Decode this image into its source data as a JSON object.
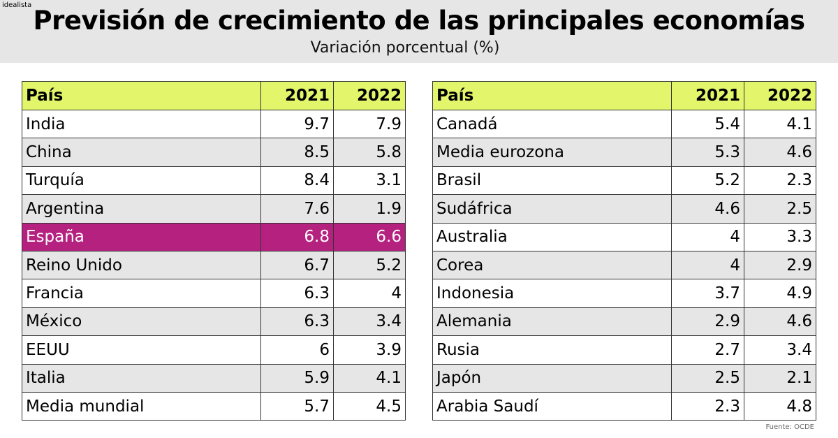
{
  "brand": "idealista",
  "title": "Previsión de crecimiento de las principales economías",
  "subtitle": "Variación porcentual (%)",
  "source": "Fuente: OCDE",
  "colors": {
    "header_row": "#e3f56b",
    "highlight": "#b5217f",
    "alt_row": "#e6e6e6"
  },
  "chart_data": {
    "type": "table",
    "columns": [
      "País",
      "2021",
      "2022"
    ],
    "highlight_row": "España",
    "tables": [
      {
        "rows": [
          [
            "India",
            "9.7",
            "7.9"
          ],
          [
            "China",
            "8.5",
            "5.8"
          ],
          [
            "Turquía",
            "8.4",
            "3.1"
          ],
          [
            "Argentina",
            "7.6",
            "1.9"
          ],
          [
            "España",
            "6.8",
            "6.6"
          ],
          [
            "Reino Unido",
            "6.7",
            "5.2"
          ],
          [
            "Francia",
            "6.3",
            "4"
          ],
          [
            "México",
            "6.3",
            "3.4"
          ],
          [
            "EEUU",
            "6",
            "3.9"
          ],
          [
            "Italia",
            "5.9",
            "4.1"
          ],
          [
            "Media mundial",
            "5.7",
            "4.5"
          ]
        ]
      },
      {
        "rows": [
          [
            "Canadá",
            "5.4",
            "4.1"
          ],
          [
            "Media eurozona",
            "5.3",
            "4.6"
          ],
          [
            "Brasil",
            "5.2",
            "2.3"
          ],
          [
            "Sudáfrica",
            "4.6",
            "2.5"
          ],
          [
            "Australia",
            "4",
            "3.3"
          ],
          [
            "Corea",
            "4",
            "2.9"
          ],
          [
            "Indonesia",
            "3.7",
            "4.9"
          ],
          [
            "Alemania",
            "2.9",
            "4.6"
          ],
          [
            "Rusia",
            "2.7",
            "3.4"
          ],
          [
            "Japón",
            "2.5",
            "2.1"
          ],
          [
            "Arabia Saudí",
            "2.3",
            "4.8"
          ]
        ]
      }
    ]
  }
}
